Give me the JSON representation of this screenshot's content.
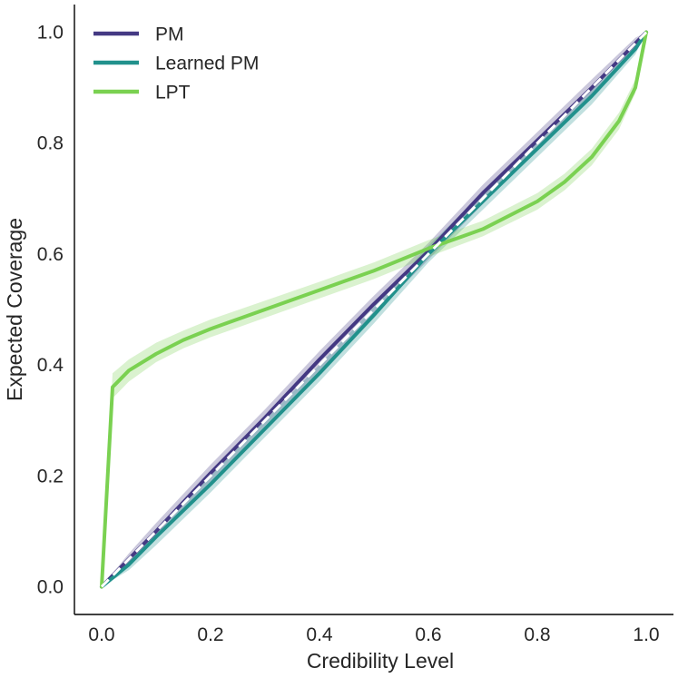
{
  "chart_data": {
    "type": "line",
    "title": "",
    "xlabel": "Credibility Level",
    "ylabel": "Expected Coverage",
    "xlim": [
      -0.05,
      1.05
    ],
    "ylim": [
      -0.05,
      1.05
    ],
    "xticks": [
      0.0,
      0.2,
      0.4,
      0.6,
      0.8,
      1.0
    ],
    "yticks": [
      0.0,
      0.2,
      0.4,
      0.6,
      0.8,
      1.0
    ],
    "xtick_labels": [
      "0.0",
      "0.2",
      "0.4",
      "0.6",
      "0.8",
      "1.0"
    ],
    "ytick_labels": [
      "0.0",
      "0.2",
      "0.4",
      "0.6",
      "0.8",
      "1.0"
    ],
    "grid": false,
    "legend_position": "top-left",
    "reference_line": {
      "style": "dashed",
      "color": "#ffffff",
      "x": [
        0.0,
        1.0
      ],
      "y": [
        0.0,
        1.0
      ]
    },
    "series": [
      {
        "name": "PM",
        "color": "#443983",
        "x": [
          0.0,
          0.05,
          0.1,
          0.2,
          0.3,
          0.4,
          0.5,
          0.6,
          0.7,
          0.8,
          0.9,
          0.98,
          1.0
        ],
        "y": [
          0.0,
          0.05,
          0.1,
          0.205,
          0.305,
          0.41,
          0.51,
          0.605,
          0.71,
          0.805,
          0.9,
          0.98,
          1.0
        ],
        "band_lower": [
          0.0,
          0.04,
          0.09,
          0.19,
          0.29,
          0.39,
          0.49,
          0.59,
          0.69,
          0.79,
          0.885,
          0.97,
          1.0
        ],
        "band_upper": [
          0.0,
          0.06,
          0.115,
          0.22,
          0.32,
          0.425,
          0.525,
          0.62,
          0.725,
          0.82,
          0.915,
          0.99,
          1.0
        ]
      },
      {
        "name": "Learned PM",
        "color": "#21918c",
        "x": [
          0.0,
          0.05,
          0.1,
          0.2,
          0.3,
          0.4,
          0.5,
          0.6,
          0.7,
          0.8,
          0.9,
          0.98,
          1.0
        ],
        "y": [
          0.0,
          0.04,
          0.09,
          0.185,
          0.285,
          0.385,
          0.49,
          0.6,
          0.695,
          0.79,
          0.885,
          0.97,
          1.0
        ],
        "band_lower": [
          0.0,
          0.03,
          0.075,
          0.17,
          0.27,
          0.37,
          0.475,
          0.585,
          0.68,
          0.775,
          0.87,
          0.96,
          1.0
        ],
        "band_upper": [
          0.0,
          0.05,
          0.1,
          0.2,
          0.3,
          0.4,
          0.505,
          0.615,
          0.71,
          0.805,
          0.9,
          0.98,
          1.0
        ]
      },
      {
        "name": "LPT",
        "color": "#7ad151",
        "x": [
          0.0,
          0.02,
          0.05,
          0.1,
          0.15,
          0.2,
          0.3,
          0.4,
          0.5,
          0.6,
          0.7,
          0.8,
          0.85,
          0.9,
          0.95,
          0.98,
          1.0
        ],
        "y": [
          0.0,
          0.36,
          0.39,
          0.42,
          0.445,
          0.465,
          0.5,
          0.535,
          0.57,
          0.61,
          0.645,
          0.695,
          0.73,
          0.775,
          0.84,
          0.9,
          1.0
        ],
        "band_lower": [
          0.0,
          0.34,
          0.37,
          0.405,
          0.43,
          0.45,
          0.485,
          0.52,
          0.555,
          0.595,
          0.632,
          0.68,
          0.715,
          0.76,
          0.825,
          0.89,
          1.0
        ],
        "band_upper": [
          0.0,
          0.385,
          0.41,
          0.44,
          0.462,
          0.482,
          0.516,
          0.55,
          0.585,
          0.625,
          0.66,
          0.71,
          0.745,
          0.79,
          0.855,
          0.915,
          1.0
        ]
      }
    ]
  }
}
